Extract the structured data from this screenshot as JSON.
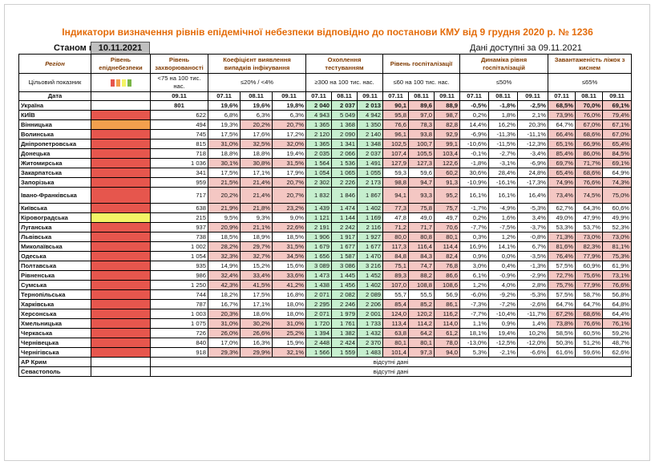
{
  "title": "Індикатори визначення рівнів епідемічної небезпеки відповідно до постанови КМУ від 9 грудня 2020 р. № 1236",
  "status": {
    "label": "Станом на",
    "date": "10.11.2021"
  },
  "data_available": "Дані доступні за  09.11.2021",
  "colors": {
    "red": "#e6564d",
    "orange": "#f2a04d",
    "yellow": "#f4f466",
    "green": "#c6efce",
    "pink": "#f4c7c3"
  },
  "headers": {
    "region": "Регіон",
    "danger": "Рівень епіднебезпеки",
    "incidence": "Рівень захворюваності",
    "detection": "Коефіцієнт виявлення випадків інфікування",
    "testing": "Охоплення тестуванням",
    "hospital": "Рівень госпіталізації",
    "dynamics": "Динаміка рівня госпіталізацій",
    "oxygen": "Завантаженість ліжок з киснем"
  },
  "targets": {
    "label": "Цільовий показник",
    "incidence": "<75 на 100 тис. нас.",
    "detection": "≤20% / <4%",
    "testing": "≥300 на 100 тис. нас.",
    "hospital": "≤60 на 100 тис. нас.",
    "dynamics": "≤50%",
    "oxygen": "≤65%"
  },
  "date_row": {
    "label": "Дата",
    "incidence": "09.11",
    "d1": "07.11",
    "d2": "08.11",
    "d3": "09.11"
  },
  "rows": [
    {
      "region": "Україна",
      "level": "",
      "inc": "801",
      "det": [
        "19,6%",
        "19,6%",
        "19,8%"
      ],
      "tst": [
        "2 040",
        "2 037",
        "2 013"
      ],
      "hos": [
        "90,1",
        "89,6",
        "88,9"
      ],
      "dyn": [
        "-0,5%",
        "-1,8%",
        "-2,5%"
      ],
      "oxy": [
        "68,5%",
        "70,0%",
        "69,1%"
      ],
      "total": true
    },
    {
      "region": "КИЇВ",
      "level": "red",
      "inc": "622",
      "det": [
        "6,8%",
        "6,3%",
        "6,3%"
      ],
      "tst": [
        "4 943",
        "5 049",
        "4 942"
      ],
      "hos": [
        "95,8",
        "97,0",
        "98,7"
      ],
      "dyn": [
        "0,2%",
        "1,8%",
        "2,1%"
      ],
      "oxy": [
        "73,9%",
        "76,0%",
        "79,4%"
      ]
    },
    {
      "region": "Вінницька",
      "level": "orange",
      "inc": "494",
      "det": [
        "19,3%",
        "20,2%",
        "20,7%"
      ],
      "tst": [
        "1 365",
        "1 368",
        "1 350"
      ],
      "hos": [
        "76,6",
        "78,3",
        "82,8"
      ],
      "dyn": [
        "14,4%",
        "16,2%",
        "20,3%"
      ],
      "oxy": [
        "64,7%",
        "67,0%",
        "67,1%"
      ]
    },
    {
      "region": "Волинська",
      "level": "red",
      "inc": "745",
      "det": [
        "17,5%",
        "17,6%",
        "17,2%"
      ],
      "tst": [
        "2 120",
        "2 090",
        "2 140"
      ],
      "hos": [
        "96,1",
        "93,8",
        "92,9"
      ],
      "dyn": [
        "-6,9%",
        "-11,3%",
        "-11,1%"
      ],
      "oxy": [
        "66,4%",
        "68,6%",
        "67,0%"
      ]
    },
    {
      "region": "Дніпропетровська",
      "level": "red",
      "inc": "815",
      "det": [
        "31,0%",
        "32,5%",
        "32,0%"
      ],
      "tst": [
        "1 365",
        "1 341",
        "1 348"
      ],
      "hos": [
        "102,5",
        "100,7",
        "99,1"
      ],
      "dyn": [
        "-10,6%",
        "-11,5%",
        "-12,3%"
      ],
      "oxy": [
        "65,1%",
        "66,9%",
        "65,4%"
      ]
    },
    {
      "region": "Донецька",
      "level": "red",
      "inc": "718",
      "det": [
        "18,8%",
        "18,8%",
        "19,4%"
      ],
      "tst": [
        "2 035",
        "2 066",
        "2 037"
      ],
      "hos": [
        "107,4",
        "105,5",
        "103,4"
      ],
      "dyn": [
        "-0,1%",
        "-2,7%",
        "-3,4%"
      ],
      "oxy": [
        "85,4%",
        "86,0%",
        "84,5%"
      ]
    },
    {
      "region": "Житомирська",
      "level": "red",
      "inc": "1 036",
      "det": [
        "30,1%",
        "30,8%",
        "31,5%"
      ],
      "tst": [
        "1 564",
        "1 536",
        "1 491"
      ],
      "hos": [
        "127,9",
        "127,3",
        "122,6"
      ],
      "dyn": [
        "-1,8%",
        "-3,1%",
        "-6,9%"
      ],
      "oxy": [
        "69,7%",
        "71,7%",
        "69,1%"
      ]
    },
    {
      "region": "Закарпатська",
      "level": "red",
      "inc": "341",
      "det": [
        "17,5%",
        "17,1%",
        "17,9%"
      ],
      "tst": [
        "1 054",
        "1 065",
        "1 055"
      ],
      "hos": [
        "59,3",
        "59,6",
        "60,2"
      ],
      "dyn": [
        "30,6%",
        "28,4%",
        "24,8%"
      ],
      "oxy": [
        "65,4%",
        "68,6%",
        "64,9%"
      ]
    },
    {
      "region": "Запорізька",
      "level": "red",
      "inc": "959",
      "det": [
        "21,5%",
        "21,4%",
        "20,7%"
      ],
      "tst": [
        "2 302",
        "2 226",
        "2 173"
      ],
      "hos": [
        "98,8",
        "94,7",
        "91,3"
      ],
      "dyn": [
        "-10,9%",
        "-16,1%",
        "-17,3%"
      ],
      "oxy": [
        "74,9%",
        "76,6%",
        "74,3%"
      ]
    },
    {
      "region": "Івано-Франківська",
      "level": "red",
      "inc": "717",
      "det": [
        "20,2%",
        "21,4%",
        "20,7%"
      ],
      "tst": [
        "1 832",
        "1 846",
        "1 867"
      ],
      "hos": [
        "94,1",
        "93,3",
        "95,2"
      ],
      "dyn": [
        "16,1%",
        "16,1%",
        "16,4%"
      ],
      "oxy": [
        "73,4%",
        "74,5%",
        "75,0%"
      ],
      "tall": true
    },
    {
      "region": "Київська",
      "level": "red",
      "inc": "638",
      "det": [
        "21,9%",
        "21,8%",
        "23,2%"
      ],
      "tst": [
        "1 439",
        "1 474",
        "1 402"
      ],
      "hos": [
        "77,3",
        "75,8",
        "75,7"
      ],
      "dyn": [
        "-1,7%",
        "-4,9%",
        "-5,3%"
      ],
      "oxy": [
        "62,7%",
        "64,3%",
        "60,6%"
      ]
    },
    {
      "region": "Кіровоградська",
      "level": "yellow",
      "inc": "215",
      "det": [
        "9,5%",
        "9,3%",
        "9,0%"
      ],
      "tst": [
        "1 121",
        "1 144",
        "1 169"
      ],
      "hos": [
        "47,8",
        "49,0",
        "49,7"
      ],
      "dyn": [
        "0,2%",
        "1,6%",
        "3,4%"
      ],
      "oxy": [
        "49,0%",
        "47,9%",
        "49,9%"
      ]
    },
    {
      "region": "Луганська",
      "level": "red",
      "inc": "937",
      "det": [
        "20,9%",
        "21,1%",
        "22,6%"
      ],
      "tst": [
        "2 191",
        "2 242",
        "2 116"
      ],
      "hos": [
        "71,2",
        "71,7",
        "70,6"
      ],
      "dyn": [
        "-7,7%",
        "-7,5%",
        "-3,7%"
      ],
      "oxy": [
        "53,3%",
        "53,7%",
        "52,3%"
      ]
    },
    {
      "region": "Львівська",
      "level": "red",
      "inc": "738",
      "det": [
        "18,5%",
        "18,9%",
        "18,5%"
      ],
      "tst": [
        "1 906",
        "1 917",
        "1 927"
      ],
      "hos": [
        "80,0",
        "80,8",
        "80,1"
      ],
      "dyn": [
        "0,3%",
        "1,2%",
        "-0,8%"
      ],
      "oxy": [
        "71,3%",
        "73,0%",
        "73,0%"
      ]
    },
    {
      "region": "Миколаївська",
      "level": "red",
      "inc": "1 002",
      "det": [
        "28,2%",
        "29,7%",
        "31,5%"
      ],
      "tst": [
        "1 679",
        "1 677",
        "1 677"
      ],
      "hos": [
        "117,3",
        "116,4",
        "114,4"
      ],
      "dyn": [
        "16,9%",
        "14,1%",
        "6,7%"
      ],
      "oxy": [
        "81,6%",
        "82,3%",
        "81,1%"
      ]
    },
    {
      "region": "Одеська",
      "level": "red",
      "inc": "1 054",
      "det": [
        "32,3%",
        "32,7%",
        "34,5%"
      ],
      "tst": [
        "1 656",
        "1 587",
        "1 470"
      ],
      "hos": [
        "84,8",
        "84,3",
        "82,4"
      ],
      "dyn": [
        "0,9%",
        "0,0%",
        "-3,5%"
      ],
      "oxy": [
        "76,4%",
        "77,9%",
        "75,3%"
      ]
    },
    {
      "region": "Полтавська",
      "level": "red",
      "inc": "935",
      "det": [
        "14,9%",
        "15,2%",
        "15,6%"
      ],
      "tst": [
        "3 089",
        "3 086",
        "3 216"
      ],
      "hos": [
        "75,1",
        "74,7",
        "76,8"
      ],
      "dyn": [
        "3,0%",
        "0,4%",
        "-1,3%"
      ],
      "oxy": [
        "57,5%",
        "60,9%",
        "61,9%"
      ]
    },
    {
      "region": "Рівненська",
      "level": "red",
      "inc": "986",
      "det": [
        "32,4%",
        "33,4%",
        "33,6%"
      ],
      "tst": [
        "1 473",
        "1 445",
        "1 452"
      ],
      "hos": [
        "89,3",
        "88,2",
        "86,6"
      ],
      "dyn": [
        "6,1%",
        "-0,9%",
        "-2,9%"
      ],
      "oxy": [
        "72,7%",
        "75,6%",
        "73,1%"
      ]
    },
    {
      "region": "Сумська",
      "level": "red",
      "inc": "1 250",
      "det": [
        "42,3%",
        "41,5%",
        "41,2%"
      ],
      "tst": [
        "1 438",
        "1 456",
        "1 402"
      ],
      "hos": [
        "107,0",
        "108,8",
        "108,6"
      ],
      "dyn": [
        "1,2%",
        "4,0%",
        "2,8%"
      ],
      "oxy": [
        "75,7%",
        "77,9%",
        "76,6%"
      ]
    },
    {
      "region": "Тернопільська",
      "level": "red",
      "inc": "744",
      "det": [
        "18,2%",
        "17,5%",
        "16,8%"
      ],
      "tst": [
        "2 071",
        "2 082",
        "2 089"
      ],
      "hos": [
        "55,7",
        "55,5",
        "56,9"
      ],
      "dyn": [
        "-6,0%",
        "-9,2%",
        "-5,3%"
      ],
      "oxy": [
        "57,5%",
        "58,7%",
        "56,8%"
      ]
    },
    {
      "region": "Харківська",
      "level": "red",
      "inc": "787",
      "det": [
        "16,7%",
        "17,1%",
        "18,0%"
      ],
      "tst": [
        "2 295",
        "2 246",
        "2 206"
      ],
      "hos": [
        "85,4",
        "85,2",
        "86,1"
      ],
      "dyn": [
        "-7,3%",
        "-7,2%",
        "-2,6%"
      ],
      "oxy": [
        "64,7%",
        "64,7%",
        "64,8%"
      ]
    },
    {
      "region": "Херсонська",
      "level": "red",
      "inc": "1 003",
      "det": [
        "20,3%",
        "18,6%",
        "18,0%"
      ],
      "tst": [
        "2 071",
        "1 979",
        "2 001"
      ],
      "hos": [
        "124,0",
        "120,2",
        "116,2"
      ],
      "dyn": [
        "-7,7%",
        "-10,4%",
        "-11,7%"
      ],
      "oxy": [
        "67,2%",
        "68,6%",
        "64,4%"
      ]
    },
    {
      "region": "Хмельницька",
      "level": "red",
      "inc": "1 075",
      "det": [
        "31,0%",
        "30,2%",
        "31,0%"
      ],
      "tst": [
        "1 720",
        "1 761",
        "1 733"
      ],
      "hos": [
        "113,4",
        "114,2",
        "114,0"
      ],
      "dyn": [
        "1,1%",
        "0,9%",
        "1,4%"
      ],
      "oxy": [
        "73,8%",
        "76,6%",
        "76,1%"
      ]
    },
    {
      "region": "Черкаська",
      "level": "red",
      "inc": "726",
      "det": [
        "26,0%",
        "26,6%",
        "25,2%"
      ],
      "tst": [
        "1 394",
        "1 382",
        "1 432"
      ],
      "hos": [
        "63,8",
        "64,2",
        "61,2"
      ],
      "dyn": [
        "18,1%",
        "19,4%",
        "10,2%"
      ],
      "oxy": [
        "58,5%",
        "60,5%",
        "59,2%"
      ]
    },
    {
      "region": "Чернівецька",
      "level": "red",
      "inc": "840",
      "det": [
        "17,0%",
        "16,3%",
        "15,9%"
      ],
      "tst": [
        "2 448",
        "2 424",
        "2 370"
      ],
      "hos": [
        "80,1",
        "80,1",
        "78,0"
      ],
      "dyn": [
        "-13,0%",
        "-12,5%",
        "-12,0%"
      ],
      "oxy": [
        "50,3%",
        "51,2%",
        "48,7%"
      ]
    },
    {
      "region": "Чернігівська",
      "level": "red",
      "inc": "918",
      "det": [
        "29,3%",
        "29,9%",
        "32,1%"
      ],
      "tst": [
        "1 566",
        "1 559",
        "1 483"
      ],
      "hos": [
        "101,4",
        "97,3",
        "94,0"
      ],
      "dyn": [
        "5,3%",
        "-2,1%",
        "-6,6%"
      ],
      "oxy": [
        "61,6%",
        "59,6%",
        "62,6%"
      ]
    }
  ],
  "missing": [
    {
      "region": "АР Крим",
      "text": "відсутні дані"
    },
    {
      "region": "Севастополь",
      "text": "відсутні дані"
    }
  ]
}
